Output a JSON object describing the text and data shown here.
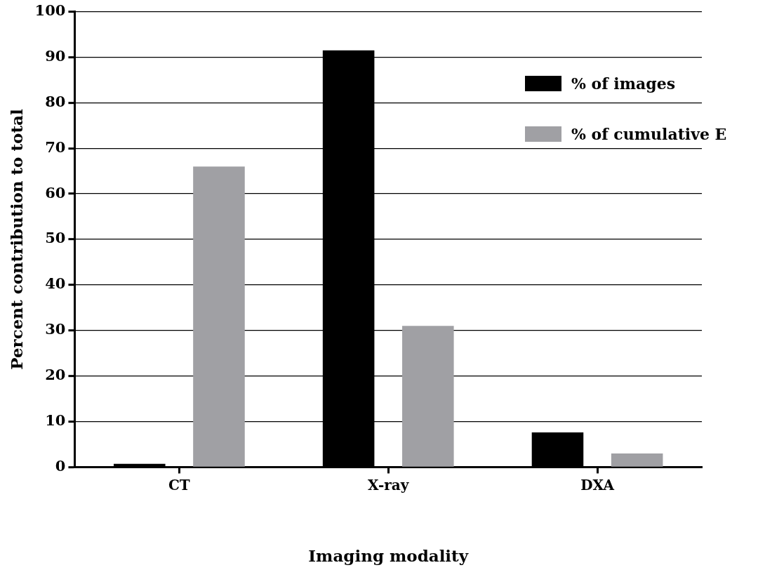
{
  "chart_data": {
    "type": "bar",
    "xlabel": "Imaging modality",
    "ylabel": "Percent contribution to total",
    "categories": [
      "CT",
      "X-ray",
      "DXA"
    ],
    "series": [
      {
        "name": "% of images",
        "color": "#000000",
        "values": [
          0.7,
          91.5,
          7.6
        ]
      },
      {
        "name": "% of cumulative E",
        "color": "#a0a0a4",
        "values": [
          66,
          31,
          3
        ]
      }
    ],
    "ylim": [
      0,
      100
    ],
    "yticks": [
      0,
      10,
      20,
      30,
      40,
      50,
      60,
      70,
      80,
      90,
      100
    ],
    "grid": "y",
    "legend": "top right"
  }
}
